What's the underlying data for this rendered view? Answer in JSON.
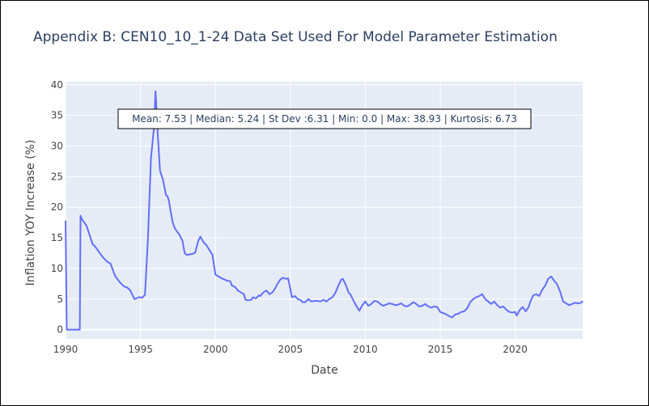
{
  "chart_data": {
    "type": "line",
    "title": "Appendix B: CEN10_10_1-24 Data Set Used For Model Parameter Estimation",
    "xlabel": "Date",
    "ylabel": "Inflation YOY Increase (%)",
    "xlim": [
      1990,
      2024.5
    ],
    "ylim": [
      -1.5,
      40.5
    ],
    "x_ticks": [
      1990,
      1995,
      2000,
      2005,
      2010,
      2015,
      2020
    ],
    "y_ticks": [
      0,
      5,
      10,
      15,
      20,
      25,
      30,
      35,
      40
    ],
    "grid": true,
    "legend": "none",
    "annotation": "Mean: 7.53 | Median: 5.24 | St Dev :6.31 | Min: 0.0 | Max: 38.93 | Kurtosis: 6.73",
    "colors": {
      "line": "#636efa",
      "plot_bg": "#e5ecf6",
      "grid": "#ffffff",
      "title": "#2a3f5f"
    },
    "series": [
      {
        "x": [
          1990.0,
          1990.08,
          1990.5,
          1990.95,
          1991.0,
          1991.1,
          1991.4,
          1991.6,
          1991.8,
          1992.0,
          1992.2,
          1992.5,
          1992.7,
          1992.85,
          1993.0,
          1993.3,
          1993.6,
          1993.8,
          1993.95,
          1994.1,
          1994.3,
          1994.6,
          1994.9,
          1995.0,
          1995.1,
          1995.3,
          1995.5,
          1995.7,
          1995.9,
          1996.0,
          1996.05,
          1996.15,
          1996.3,
          1996.5,
          1996.7,
          1996.8,
          1996.9,
          1997.0,
          1997.15,
          1997.3,
          1997.6,
          1997.8,
          1997.95,
          1998.1,
          1998.3,
          1998.5,
          1998.65,
          1998.85,
          1999.0,
          1999.2,
          1999.4,
          1999.6,
          1999.8,
          2000.0,
          2000.2,
          2000.4,
          2000.6,
          2000.8,
          2001.0,
          2001.1,
          2001.3,
          2001.5,
          2001.7,
          2001.9,
          2002.0,
          2002.2,
          2002.4,
          2002.5,
          2002.7,
          2002.9,
          2003.0,
          2003.2,
          2003.4,
          2003.6,
          2003.8,
          2004.0,
          2004.1,
          2004.3,
          2004.5,
          2004.7,
          2004.85,
          2005.0,
          2005.1,
          2005.3,
          2005.5,
          2005.7,
          2005.8,
          2006.0,
          2006.2,
          2006.4,
          2006.6,
          2006.8,
          2007.0,
          2007.2,
          2007.4,
          2007.6,
          2007.8,
          2008.0,
          2008.2,
          2008.4,
          2008.5,
          2008.7,
          2008.9,
          2009.0,
          2009.2,
          2009.4,
          2009.6,
          2009.8,
          2010.0,
          2010.2,
          2010.4,
          2010.6,
          2010.8,
          2011.0,
          2011.2,
          2011.4,
          2011.6,
          2011.8,
          2012.0,
          2012.2,
          2012.4,
          2012.6,
          2012.8,
          2013.0,
          2013.2,
          2013.4,
          2013.6,
          2013.8,
          2014.0,
          2014.2,
          2014.4,
          2014.6,
          2014.8,
          2015.0,
          2015.2,
          2015.4,
          2015.6,
          2015.8,
          2016.0,
          2016.2,
          2016.4,
          2016.6,
          2016.8,
          2017.0,
          2017.2,
          2017.4,
          2017.6,
          2017.8,
          2018.0,
          2018.2,
          2018.4,
          2018.6,
          2018.8,
          2019.0,
          2019.2,
          2019.4,
          2019.6,
          2019.8,
          2020.0,
          2020.1,
          2020.3,
          2020.5,
          2020.7,
          2020.9,
          2021.0,
          2021.2,
          2021.4,
          2021.6,
          2021.8,
          2022.0,
          2022.2,
          2022.4,
          2022.6,
          2022.8,
          2023.0,
          2023.2,
          2023.4,
          2023.6,
          2023.8,
          2024.0,
          2024.2,
          2024.4,
          2024.5
        ],
        "y": [
          17.8,
          0.0,
          0.0,
          0.0,
          18.6,
          18.0,
          17.0,
          15.5,
          14.0,
          13.5,
          12.8,
          11.8,
          11.3,
          11.0,
          10.8,
          8.8,
          7.8,
          7.3,
          7.0,
          6.9,
          6.5,
          5.0,
          5.3,
          5.3,
          5.2,
          5.7,
          15.0,
          28.0,
          33.0,
          38.93,
          37.0,
          32.0,
          26.0,
          24.5,
          22.0,
          21.8,
          21.0,
          19.5,
          17.5,
          16.5,
          15.5,
          14.5,
          12.5,
          12.2,
          12.3,
          12.4,
          12.6,
          14.5,
          15.2,
          14.3,
          13.8,
          13.0,
          12.2,
          9.0,
          8.7,
          8.4,
          8.2,
          8.0,
          7.9,
          7.2,
          7.0,
          6.4,
          6.1,
          5.8,
          4.9,
          4.8,
          4.9,
          5.3,
          5.1,
          5.6,
          5.5,
          6.1,
          6.4,
          5.8,
          6.1,
          6.8,
          7.3,
          8.1,
          8.5,
          8.3,
          8.4,
          6.6,
          5.3,
          5.5,
          5.0,
          4.8,
          4.5,
          4.5,
          5.0,
          4.6,
          4.7,
          4.7,
          4.6,
          4.9,
          4.6,
          5.0,
          5.3,
          6.0,
          7.2,
          8.2,
          8.3,
          7.3,
          6.0,
          5.8,
          4.8,
          3.9,
          3.1,
          4.0,
          4.6,
          3.9,
          4.2,
          4.7,
          4.6,
          4.2,
          3.9,
          4.1,
          4.3,
          4.2,
          4.0,
          4.1,
          4.3,
          3.9,
          3.8,
          4.1,
          4.5,
          4.2,
          3.8,
          3.9,
          4.2,
          3.8,
          3.6,
          3.8,
          3.7,
          2.9,
          2.7,
          2.5,
          2.2,
          2.0,
          2.5,
          2.6,
          2.9,
          3.0,
          3.5,
          4.5,
          5.0,
          5.3,
          5.5,
          5.8,
          5.0,
          4.6,
          4.2,
          4.6,
          4.0,
          3.6,
          3.8,
          3.3,
          2.9,
          2.8,
          2.9,
          2.3,
          3.2,
          3.7,
          3.0,
          3.7,
          4.5,
          5.6,
          5.8,
          5.5,
          6.5,
          7.2,
          8.3,
          8.7,
          8.0,
          7.4,
          6.2,
          4.6,
          4.3,
          4.0,
          4.2,
          4.4,
          4.3,
          4.4,
          4.7
        ]
      }
    ]
  }
}
